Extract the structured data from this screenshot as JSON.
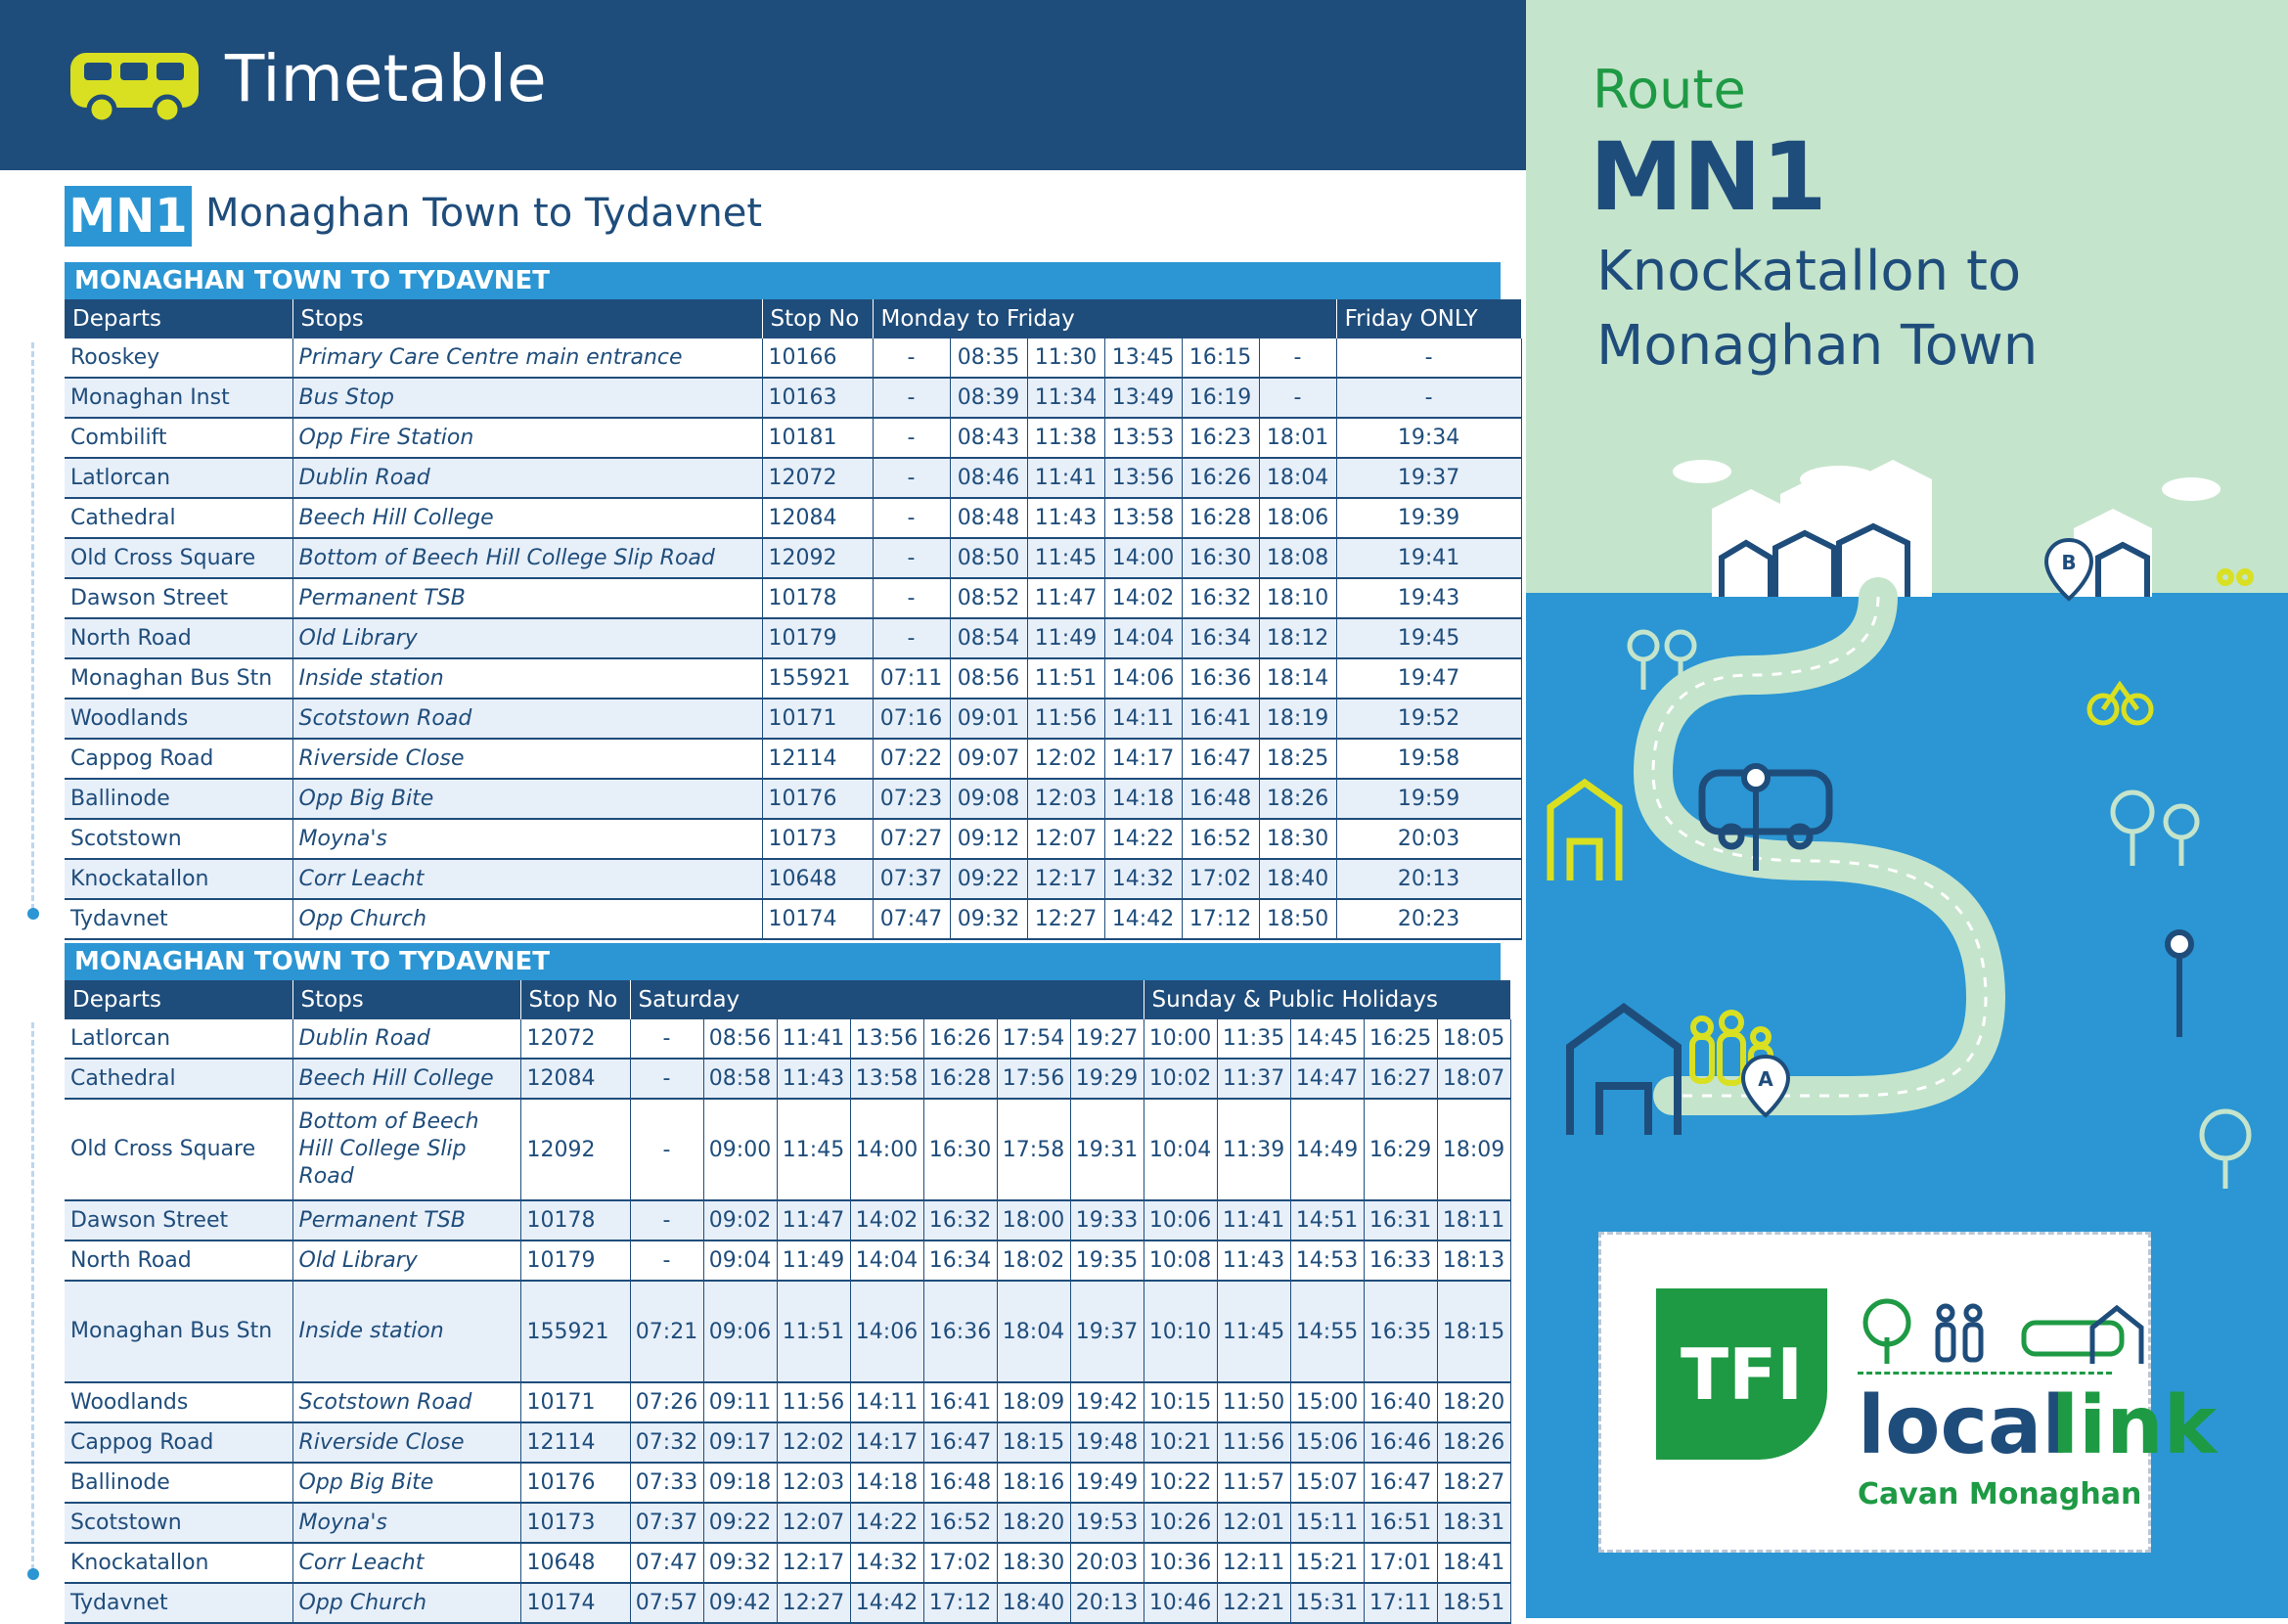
{
  "header": {
    "title": "Timetable"
  },
  "route": {
    "code": "MN1",
    "name": "Monaghan Town to Tydavnet"
  },
  "side_panel": {
    "route_label": "Route",
    "route_code": "MN1",
    "route_desc_line1": "Knockatallon to",
    "route_desc_line2": "Monaghan Town",
    "stop_a": "A",
    "stop_b": "B"
  },
  "brand": {
    "tfi": "TFI",
    "local": "local",
    "link": "link",
    "region": "Cavan Monaghan"
  },
  "colors": {
    "navy": "#1f4d7b",
    "blue": "#2b96d3",
    "green": "#1e9a44",
    "yellow": "#d9e021",
    "mint": "#c5e4cc"
  },
  "table1": {
    "section_title": "MONAGHAN TOWN TO TYDAVNET",
    "headers": {
      "departs": "Departs",
      "stops": "Stops",
      "stop_no": "Stop No",
      "group1": "Monday to Friday",
      "group2": "Friday ONLY"
    },
    "rows": [
      [
        "Rooskey",
        "Primary Care Centre main entrance",
        "10166",
        "-",
        "08:35",
        "11:30",
        "13:45",
        "16:15",
        "-",
        "-"
      ],
      [
        "Monaghan Inst",
        "Bus Stop",
        "10163",
        "-",
        "08:39",
        "11:34",
        "13:49",
        "16:19",
        "-",
        "-"
      ],
      [
        "Combilift",
        "Opp Fire Station",
        "10181",
        "-",
        "08:43",
        "11:38",
        "13:53",
        "16:23",
        "18:01",
        "19:34"
      ],
      [
        "Latlorcan",
        "Dublin Road",
        "12072",
        "-",
        "08:46",
        "11:41",
        "13:56",
        "16:26",
        "18:04",
        "19:37"
      ],
      [
        "Cathedral",
        "Beech Hill College",
        "12084",
        "-",
        "08:48",
        "11:43",
        "13:58",
        "16:28",
        "18:06",
        "19:39"
      ],
      [
        "Old Cross Square",
        "Bottom of Beech Hill College Slip Road",
        "12092",
        "-",
        "08:50",
        "11:45",
        "14:00",
        "16:30",
        "18:08",
        "19:41"
      ],
      [
        "Dawson Street",
        "Permanent TSB",
        "10178",
        "-",
        "08:52",
        "11:47",
        "14:02",
        "16:32",
        "18:10",
        "19:43"
      ],
      [
        "North Road",
        "Old Library",
        "10179",
        "-",
        "08:54",
        "11:49",
        "14:04",
        "16:34",
        "18:12",
        "19:45"
      ],
      [
        "Monaghan Bus Stn",
        "Inside station",
        "155921",
        "07:11",
        "08:56",
        "11:51",
        "14:06",
        "16:36",
        "18:14",
        "19:47"
      ],
      [
        "Woodlands",
        "Scotstown Road",
        "10171",
        "07:16",
        "09:01",
        "11:56",
        "14:11",
        "16:41",
        "18:19",
        "19:52"
      ],
      [
        "Cappog Road",
        "Riverside Close",
        "12114",
        "07:22",
        "09:07",
        "12:02",
        "14:17",
        "16:47",
        "18:25",
        "19:58"
      ],
      [
        "Ballinode",
        "Opp Big Bite",
        "10176",
        "07:23",
        "09:08",
        "12:03",
        "14:18",
        "16:48",
        "18:26",
        "19:59"
      ],
      [
        "Scotstown",
        "Moyna's",
        "10173",
        "07:27",
        "09:12",
        "12:07",
        "14:22",
        "16:52",
        "18:30",
        "20:03"
      ],
      [
        "Knockatallon",
        "Corr Leacht",
        "10648",
        "07:37",
        "09:22",
        "12:17",
        "14:32",
        "17:02",
        "18:40",
        "20:13"
      ],
      [
        "Tydavnet",
        "Opp Church",
        "10174",
        "07:47",
        "09:32",
        "12:27",
        "14:42",
        "17:12",
        "18:50",
        "20:23"
      ]
    ]
  },
  "table2": {
    "section_title": "MONAGHAN TOWN TO TYDAVNET",
    "headers": {
      "departs": "Departs",
      "stops": "Stops",
      "stop_no": "Stop No",
      "group1": "Saturday",
      "group2": "Sunday & Public Holidays"
    },
    "rows": [
      [
        "Latlorcan",
        "Dublin Road",
        "12072",
        "-",
        "08:56",
        "11:41",
        "13:56",
        "16:26",
        "17:54",
        "19:27",
        "10:00",
        "11:35",
        "14:45",
        "16:25",
        "18:05"
      ],
      [
        "Cathedral",
        "Beech Hill College",
        "12084",
        "-",
        "08:58",
        "11:43",
        "13:58",
        "16:28",
        "17:56",
        "19:29",
        "10:02",
        "11:37",
        "14:47",
        "16:27",
        "18:07"
      ],
      [
        "Old Cross Square",
        "Bottom of Beech Hill College Slip Road",
        "12092",
        "-",
        "09:00",
        "11:45",
        "14:00",
        "16:30",
        "17:58",
        "19:31",
        "10:04",
        "11:39",
        "14:49",
        "16:29",
        "18:09"
      ],
      [
        "Dawson Street",
        "Permanent TSB",
        "10178",
        "-",
        "09:02",
        "11:47",
        "14:02",
        "16:32",
        "18:00",
        "19:33",
        "10:06",
        "11:41",
        "14:51",
        "16:31",
        "18:11"
      ],
      [
        "North Road",
        "Old Library",
        "10179",
        "-",
        "09:04",
        "11:49",
        "14:04",
        "16:34",
        "18:02",
        "19:35",
        "10:08",
        "11:43",
        "14:53",
        "16:33",
        "18:13"
      ],
      [
        "Monaghan Bus Stn",
        "Inside station",
        "155921",
        "07:21",
        "09:06",
        "11:51",
        "14:06",
        "16:36",
        "18:04",
        "19:37",
        "10:10",
        "11:45",
        "14:55",
        "16:35",
        "18:15"
      ],
      [
        "Woodlands",
        "Scotstown Road",
        "10171",
        "07:26",
        "09:11",
        "11:56",
        "14:11",
        "16:41",
        "18:09",
        "19:42",
        "10:15",
        "11:50",
        "15:00",
        "16:40",
        "18:20"
      ],
      [
        "Cappog Road",
        "Riverside Close",
        "12114",
        "07:32",
        "09:17",
        "12:02",
        "14:17",
        "16:47",
        "18:15",
        "19:48",
        "10:21",
        "11:56",
        "15:06",
        "16:46",
        "18:26"
      ],
      [
        "Ballinode",
        "Opp Big Bite",
        "10176",
        "07:33",
        "09:18",
        "12:03",
        "14:18",
        "16:48",
        "18:16",
        "19:49",
        "10:22",
        "11:57",
        "15:07",
        "16:47",
        "18:27"
      ],
      [
        "Scotstown",
        "Moyna's",
        "10173",
        "07:37",
        "09:22",
        "12:07",
        "14:22",
        "16:52",
        "18:20",
        "19:53",
        "10:26",
        "12:01",
        "15:11",
        "16:51",
        "18:31"
      ],
      [
        "Knockatallon",
        "Corr Leacht",
        "10648",
        "07:47",
        "09:32",
        "12:17",
        "14:32",
        "17:02",
        "18:30",
        "20:03",
        "10:36",
        "12:11",
        "15:21",
        "17:01",
        "18:41"
      ],
      [
        "Tydavnet",
        "Opp Church",
        "10174",
        "07:57",
        "09:42",
        "12:27",
        "14:42",
        "17:12",
        "18:40",
        "20:13",
        "10:46",
        "12:21",
        "15:31",
        "17:11",
        "18:51"
      ]
    ]
  }
}
